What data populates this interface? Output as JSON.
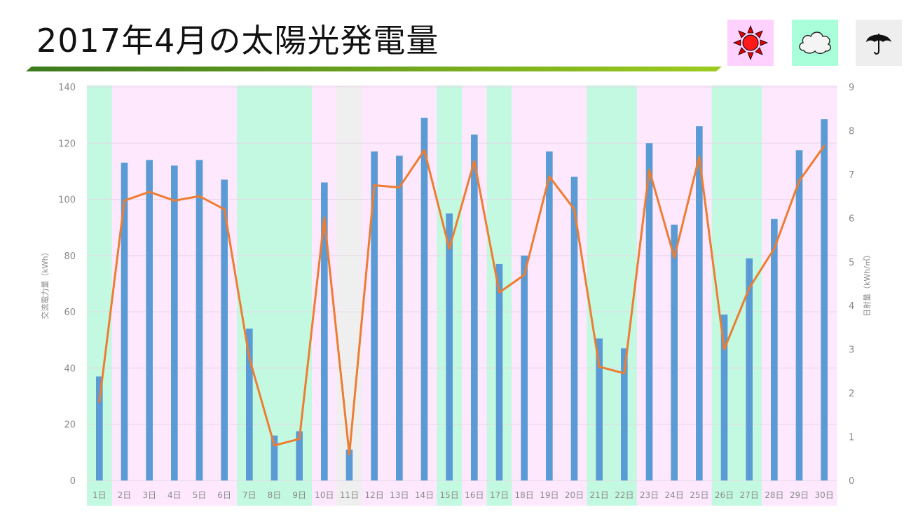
{
  "header": {
    "title": "2017年4月の太陽光発電量"
  },
  "legend": {
    "sunny": {
      "icon": "sun-icon",
      "color": "#ffd1ff"
    },
    "cloudy": {
      "icon": "cloud-icon",
      "color": "#a9ffd9"
    },
    "rainy": {
      "icon": "umbrella-icon",
      "color": "#eeeeee"
    }
  },
  "chart_data": {
    "type": "bar",
    "categories": [
      "1日",
      "2日",
      "3日",
      "4日",
      "5日",
      "6日",
      "7日",
      "8日",
      "9日",
      "10日",
      "11日",
      "12日",
      "13日",
      "14日",
      "15日",
      "16日",
      "17日",
      "18日",
      "19日",
      "20日",
      "21日",
      "22日",
      "23日",
      "24日",
      "25日",
      "26日",
      "27日",
      "28日",
      "29日",
      "30日"
    ],
    "weather": [
      "cloudy",
      "sunny",
      "sunny",
      "sunny",
      "sunny",
      "sunny",
      "cloudy",
      "cloudy",
      "cloudy",
      "sunny",
      "rainy",
      "sunny",
      "sunny",
      "sunny",
      "cloudy",
      "sunny",
      "cloudy",
      "sunny",
      "sunny",
      "sunny",
      "cloudy",
      "cloudy",
      "sunny",
      "sunny",
      "sunny",
      "cloudy",
      "cloudy",
      "sunny",
      "sunny",
      "sunny"
    ],
    "weather_colors": {
      "sunny": "#fde8fd",
      "cloudy": "#c3f9e1",
      "rainy": "#efefef"
    },
    "series": [
      {
        "type": "bar",
        "axis": "left",
        "color": "#5b9bd5",
        "values": [
          37,
          113,
          114,
          112,
          114,
          107,
          54,
          16,
          17.5,
          106,
          11,
          117,
          115.5,
          129,
          95,
          123,
          77,
          80,
          117,
          108,
          50.5,
          47,
          120,
          91,
          126,
          59,
          79,
          93,
          117.5,
          128.5
        ]
      },
      {
        "type": "line",
        "axis": "right",
        "color": "#ed7d31",
        "values": [
          1.8,
          6.4,
          6.6,
          6.4,
          6.5,
          6.2,
          2.8,
          0.8,
          0.95,
          6.0,
          0.6,
          6.75,
          6.7,
          7.55,
          5.3,
          7.3,
          4.3,
          4.7,
          6.95,
          6.2,
          2.6,
          2.45,
          7.1,
          5.1,
          7.4,
          3.0,
          4.4,
          5.3,
          6.85,
          7.65
        ]
      }
    ],
    "ylabel": "交流電力量（kWh）",
    "y2label": "日射量（kWh/㎡）",
    "ylim": [
      0,
      140
    ],
    "y2lim": [
      0,
      9
    ],
    "yticks": [
      0,
      20,
      40,
      60,
      80,
      100,
      120,
      140
    ],
    "y2ticks": [
      0,
      1,
      2,
      3,
      4,
      5,
      6,
      7,
      8,
      9
    ],
    "grid": true
  }
}
